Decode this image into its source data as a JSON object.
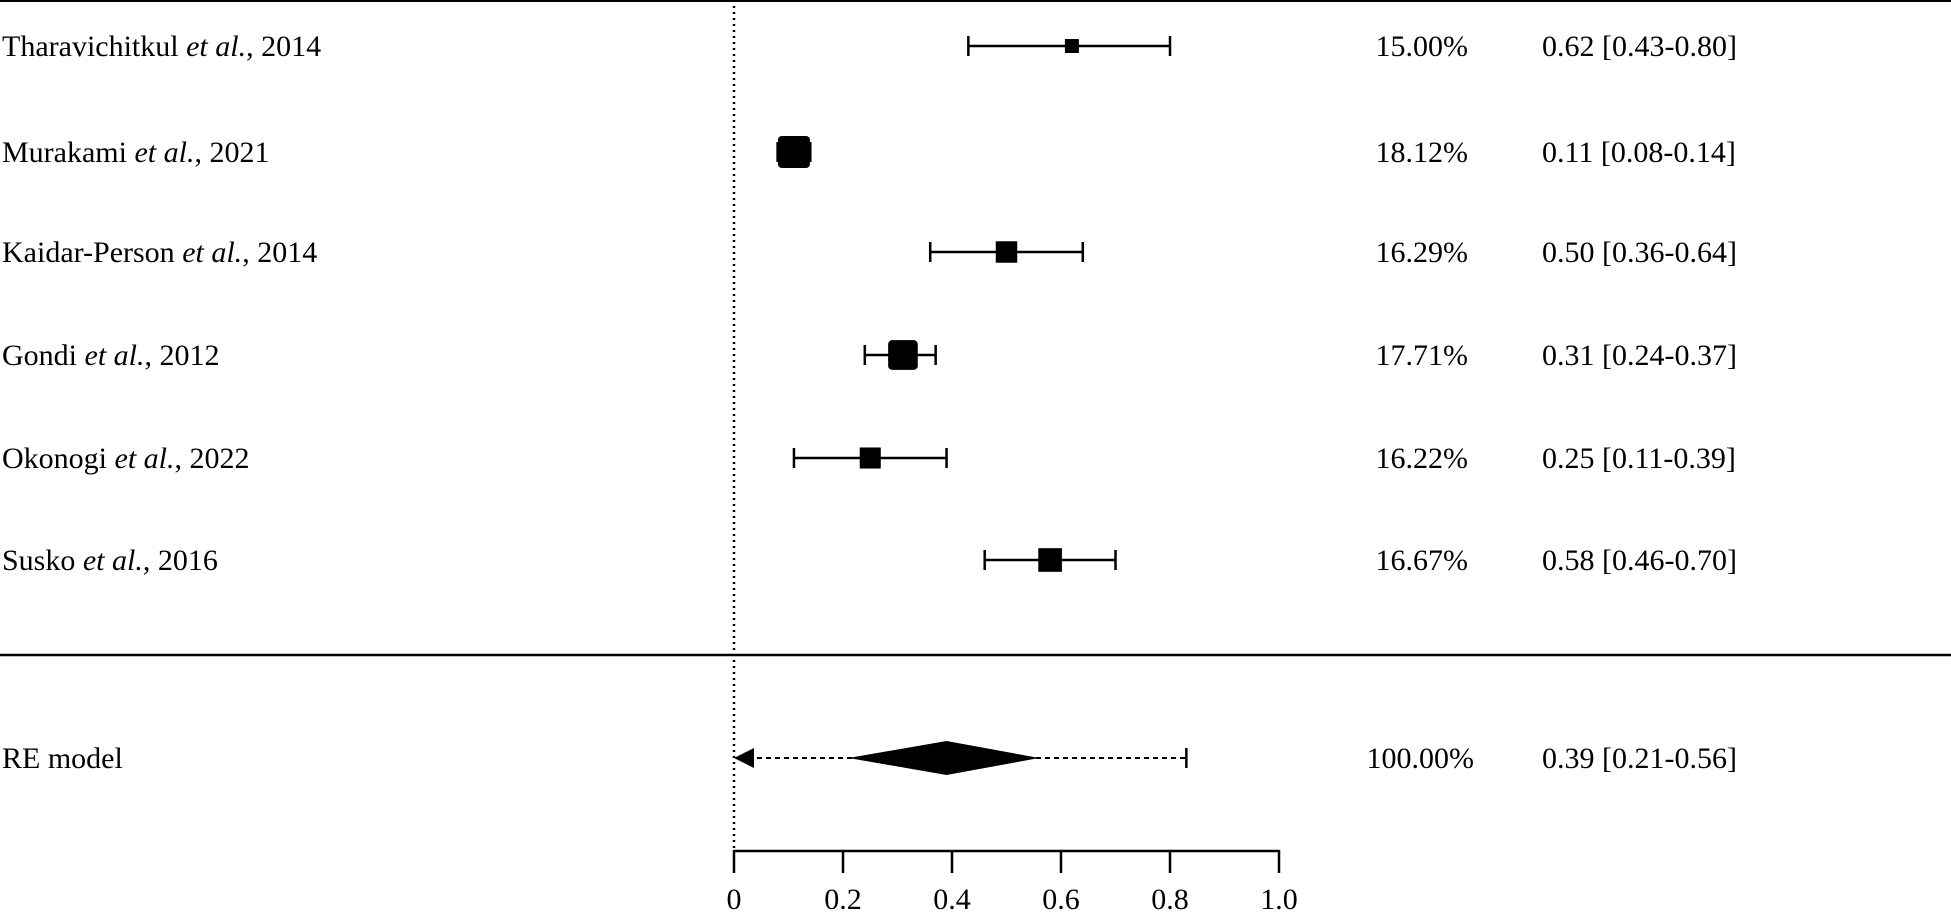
{
  "chart_data": {
    "type": "forest",
    "xlim": [
      0,
      1.0
    ],
    "ticks": [
      "0",
      "0.2",
      "0.4",
      "0.6",
      "0.8",
      "1.0"
    ],
    "tick_values": [
      0,
      0.2,
      0.4,
      0.6,
      0.8,
      1.0
    ],
    "reference_line": 0,
    "studies": [
      {
        "author": "Tharavichitkul",
        "etal": "et al.",
        "year": ", 2014",
        "estimate": 0.62,
        "lower": 0.43,
        "upper": 0.8,
        "weight": 15.0,
        "weight_label": "15.00%",
        "ci_label": "0.62 [0.43-0.80]"
      },
      {
        "author": "Murakami",
        "etal": "et al.",
        "year": ", 2021",
        "estimate": 0.11,
        "lower": 0.08,
        "upper": 0.14,
        "weight": 18.12,
        "weight_label": "18.12%",
        "ci_label": "0.11 [0.08-0.14]"
      },
      {
        "author": "Kaidar-Person",
        "etal": "et al.",
        "year": ", 2014",
        "estimate": 0.5,
        "lower": 0.36,
        "upper": 0.64,
        "weight": 16.29,
        "weight_label": "16.29%",
        "ci_label": "0.50 [0.36-0.64]"
      },
      {
        "author": "Gondi",
        "etal": "et al.",
        "year": ", 2012",
        "estimate": 0.31,
        "lower": 0.24,
        "upper": 0.37,
        "weight": 17.71,
        "weight_label": "17.71%",
        "ci_label": "0.31 [0.24-0.37]"
      },
      {
        "author": "Okonogi",
        "etal": "et al.",
        "year": ", 2022",
        "estimate": 0.25,
        "lower": 0.11,
        "upper": 0.39,
        "weight": 16.22,
        "weight_label": "16.22%",
        "ci_label": "0.25 [0.11-0.39]"
      },
      {
        "author": "Susko",
        "etal": "et al.",
        "year": ", 2016",
        "estimate": 0.58,
        "lower": 0.46,
        "upper": 0.7,
        "weight": 16.67,
        "weight_label": "16.67%",
        "ci_label": "0.58 [0.46-0.70]"
      }
    ],
    "summary": {
      "label": "RE model",
      "estimate": 0.39,
      "lower": 0.21,
      "upper": 0.56,
      "pred_lower": 0.0,
      "pred_upper": 0.83,
      "weight_label": "100.00%",
      "ci_label": "0.39 [0.21-0.56]"
    }
  }
}
